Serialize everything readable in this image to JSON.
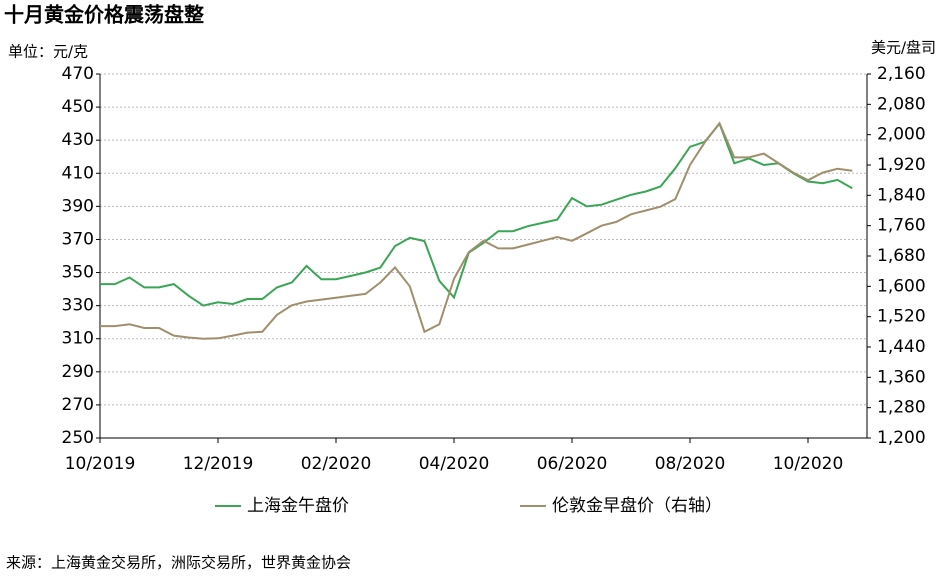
{
  "chart_data": {
    "type": "line",
    "title": "十月黄金价格震荡盘整",
    "y_label": "单位：元/克",
    "y2_label": "美元/盘司",
    "source": "来源：上海黄金交易所，洲际交易所，世界黄金协会",
    "categories": [
      "10/2019",
      null,
      null,
      null,
      null,
      null,
      null,
      null,
      "12/2019",
      null,
      null,
      null,
      null,
      null,
      null,
      null,
      "02/2020",
      null,
      null,
      null,
      null,
      null,
      null,
      null,
      "04/2020",
      null,
      null,
      null,
      null,
      null,
      null,
      null,
      "06/2020",
      null,
      null,
      null,
      null,
      null,
      null,
      null,
      "08/2020",
      null,
      null,
      null,
      null,
      null,
      null,
      null,
      "10/2020",
      null,
      null,
      null
    ],
    "ylim": [
      250,
      470
    ],
    "yticks": [
      250,
      270,
      290,
      310,
      330,
      350,
      370,
      390,
      410,
      430,
      450,
      470
    ],
    "y2lim": [
      1200,
      2160
    ],
    "y2ticks": [
      {
        "value": 1200,
        "label": "1,200"
      },
      {
        "value": 1280,
        "label": "1,280"
      },
      {
        "value": 1360,
        "label": "1,360"
      },
      {
        "value": 1440,
        "label": "1,440"
      },
      {
        "value": 1520,
        "label": "1,520"
      },
      {
        "value": 1600,
        "label": "1,600"
      },
      {
        "value": 1680,
        "label": "1,680"
      },
      {
        "value": 1760,
        "label": "1,760"
      },
      {
        "value": 1840,
        "label": "1,840"
      },
      {
        "value": 1920,
        "label": "1,920"
      },
      {
        "value": 2000,
        "label": "2,000"
      },
      {
        "value": 2080,
        "label": "2,080"
      },
      {
        "value": 2160,
        "label": "2,160"
      }
    ],
    "grid": true,
    "legend": "bottom",
    "series": [
      {
        "name": "上海金午盘价",
        "color": "#3aa655",
        "values": [
          343,
          343,
          347,
          341,
          341,
          343,
          336,
          330,
          332,
          331,
          334,
          334,
          341,
          344,
          354,
          346,
          346,
          348,
          350,
          353,
          366,
          371,
          369,
          345,
          335,
          362,
          368,
          375,
          375,
          378,
          380,
          382,
          395,
          390,
          391,
          394,
          397,
          399,
          402,
          413,
          426,
          429,
          440,
          416,
          419,
          415,
          416,
          410,
          405,
          404,
          406,
          401
        ]
      },
      {
        "name": "伦敦金早盘价（右轴）",
        "color": "#a08f6c",
        "axis": "y2",
        "values": [
          1495,
          1495,
          1500,
          1490,
          1490,
          1470,
          1465,
          1462,
          1463,
          1470,
          1478,
          1480,
          1525,
          1550,
          1560,
          1565,
          1570,
          1575,
          1580,
          1610,
          1650,
          1600,
          1480,
          1500,
          1620,
          1690,
          1720,
          1700,
          1700,
          1710,
          1720,
          1730,
          1720,
          1740,
          1760,
          1770,
          1790,
          1800,
          1810,
          1830,
          1920,
          1980,
          2030,
          1940,
          1940,
          1950,
          1925,
          1900,
          1880,
          1900,
          1910,
          1905
        ]
      }
    ]
  }
}
